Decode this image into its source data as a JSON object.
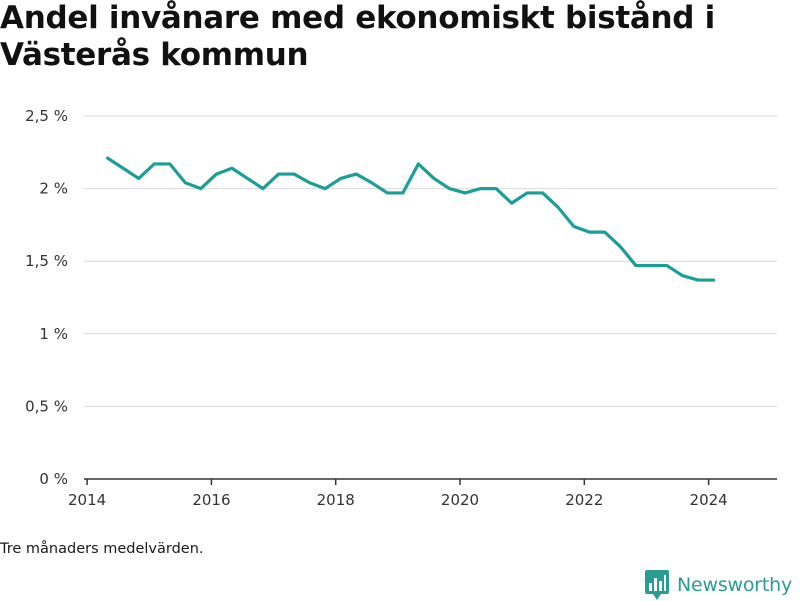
{
  "title": "Andel invånare med ekonomiskt bistånd i Västerås kommun",
  "note": "Tre månaders medelvärden.",
  "brand": {
    "name": "Newsworthy",
    "icon": "newsworthy-logo-icon",
    "color": "#2a9d93"
  },
  "colors": {
    "line": "#1a9e96",
    "grid": "#d9d9d9",
    "axis": "#333333"
  },
  "chart_data": {
    "type": "line",
    "title": "Andel invånare med ekonomiskt bistånd i Västerås kommun",
    "xlabel": "",
    "ylabel": "",
    "grid": true,
    "legend": "none",
    "xlim": [
      2013.95,
      2025.1
    ],
    "ylim": [
      0,
      2.5
    ],
    "x_ticks": [
      2014,
      2016,
      2018,
      2020,
      2022,
      2024
    ],
    "x_tick_labels": [
      "2014",
      "2016",
      "2018",
      "2020",
      "2022",
      "2024"
    ],
    "y_ticks": [
      0,
      0.5,
      1,
      1.5,
      2,
      2.5
    ],
    "y_tick_labels": [
      "0 %",
      "0,5 %",
      "1 %",
      "1,5 %",
      "2 %",
      "2,5 %"
    ],
    "series": [
      {
        "values": [
          [
            2014.33,
            2.21
          ],
          [
            2014.58,
            2.14
          ],
          [
            2014.83,
            2.07
          ],
          [
            2015.08,
            2.17
          ],
          [
            2015.33,
            2.17
          ],
          [
            2015.58,
            2.04
          ],
          [
            2015.83,
            2.0
          ],
          [
            2016.08,
            2.1
          ],
          [
            2016.33,
            2.14
          ],
          [
            2016.58,
            2.07
          ],
          [
            2016.83,
            2.0
          ],
          [
            2017.08,
            2.1
          ],
          [
            2017.33,
            2.1
          ],
          [
            2017.58,
            2.04
          ],
          [
            2017.83,
            2.0
          ],
          [
            2018.08,
            2.07
          ],
          [
            2018.33,
            2.1
          ],
          [
            2018.58,
            2.04
          ],
          [
            2018.83,
            1.97
          ],
          [
            2019.08,
            1.97
          ],
          [
            2019.33,
            2.17
          ],
          [
            2019.58,
            2.07
          ],
          [
            2019.83,
            2.0
          ],
          [
            2020.08,
            1.97
          ],
          [
            2020.33,
            2.0
          ],
          [
            2020.58,
            2.0
          ],
          [
            2020.83,
            1.9
          ],
          [
            2021.08,
            1.97
          ],
          [
            2021.33,
            1.97
          ],
          [
            2021.58,
            1.87
          ],
          [
            2021.83,
            1.74
          ],
          [
            2022.08,
            1.7
          ],
          [
            2022.33,
            1.7
          ],
          [
            2022.58,
            1.6
          ],
          [
            2022.83,
            1.47
          ],
          [
            2023.08,
            1.47
          ],
          [
            2023.33,
            1.47
          ],
          [
            2023.58,
            1.4
          ],
          [
            2023.83,
            1.37
          ],
          [
            2024.08,
            1.37
          ]
        ]
      }
    ]
  }
}
